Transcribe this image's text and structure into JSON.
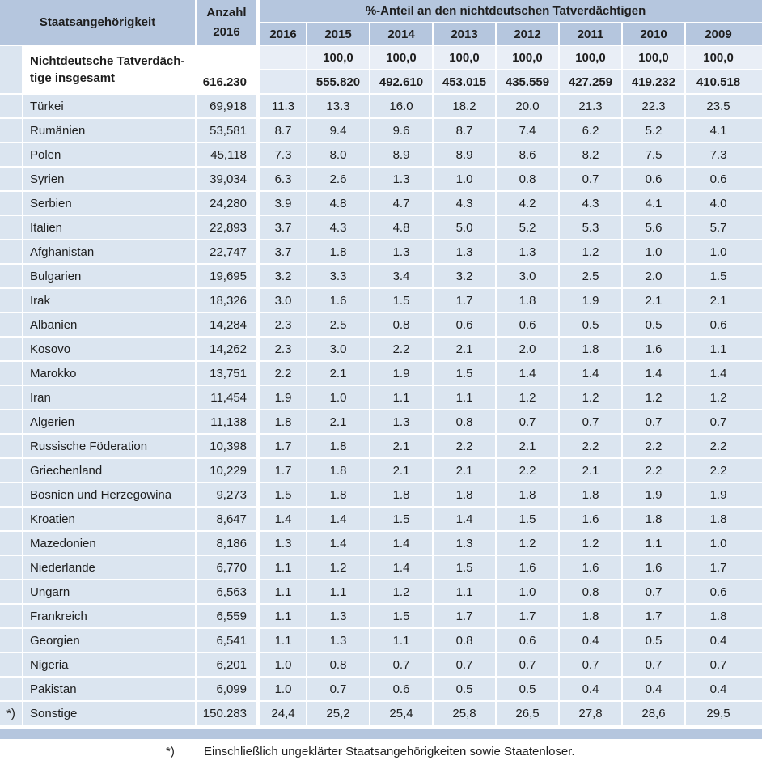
{
  "table": {
    "header": {
      "col_staatsangehoerigkeit": "Staatsangehörigkeit",
      "col_anzahl_line1": "Anzahl",
      "col_anzahl_line2": "2016",
      "col_anteil": "%-Anteil an den nichtdeutschen Tatverdächtigen",
      "years": [
        "2016",
        "2015",
        "2014",
        "2013",
        "2012",
        "2011",
        "2010",
        "2009"
      ]
    },
    "total_row": {
      "label_line1": "Nichtdeutsche Tatverdäch-",
      "label_line2": "tige insgesamt",
      "anzahl": "616.230",
      "shares": [
        "",
        "100,0",
        "100,0",
        "100,0",
        "100,0",
        "100,0",
        "100,0",
        "100,0"
      ],
      "counts": [
        "",
        "555.820",
        "492.610",
        "453.015",
        "435.559",
        "427.259",
        "419.232",
        "410.518"
      ]
    },
    "rows": [
      {
        "marker": "",
        "name": "Türkei",
        "anzahl": "69,918",
        "shares": [
          "11.3",
          "13.3",
          "16.0",
          "18.2",
          "20.0",
          "21.3",
          "22.3",
          "23.5"
        ]
      },
      {
        "marker": "",
        "name": "Rumänien",
        "anzahl": "53,581",
        "shares": [
          "8.7",
          "9.4",
          "9.6",
          "8.7",
          "7.4",
          "6.2",
          "5.2",
          "4.1"
        ]
      },
      {
        "marker": "",
        "name": "Polen",
        "anzahl": "45,118",
        "shares": [
          "7.3",
          "8.0",
          "8.9",
          "8.9",
          "8.6",
          "8.2",
          "7.5",
          "7.3"
        ]
      },
      {
        "marker": "",
        "name": "Syrien",
        "anzahl": "39,034",
        "shares": [
          "6.3",
          "2.6",
          "1.3",
          "1.0",
          "0.8",
          "0.7",
          "0.6",
          "0.6"
        ]
      },
      {
        "marker": "",
        "name": "Serbien",
        "anzahl": "24,280",
        "shares": [
          "3.9",
          "4.8",
          "4.7",
          "4.3",
          "4.2",
          "4.3",
          "4.1",
          "4.0"
        ]
      },
      {
        "marker": "",
        "name": "Italien",
        "anzahl": "22,893",
        "shares": [
          "3.7",
          "4.3",
          "4.8",
          "5.0",
          "5.2",
          "5.3",
          "5.6",
          "5.7"
        ]
      },
      {
        "marker": "",
        "name": "Afghanistan",
        "anzahl": "22,747",
        "shares": [
          "3.7",
          "1.8",
          "1.3",
          "1.3",
          "1.3",
          "1.2",
          "1.0",
          "1.0"
        ]
      },
      {
        "marker": "",
        "name": "Bulgarien",
        "anzahl": "19,695",
        "shares": [
          "3.2",
          "3.3",
          "3.4",
          "3.2",
          "3.0",
          "2.5",
          "2.0",
          "1.5"
        ]
      },
      {
        "marker": "",
        "name": "Irak",
        "anzahl": "18,326",
        "shares": [
          "3.0",
          "1.6",
          "1.5",
          "1.7",
          "1.8",
          "1.9",
          "2.1",
          "2.1"
        ]
      },
      {
        "marker": "",
        "name": "Albanien",
        "anzahl": "14,284",
        "shares": [
          "2.3",
          "2.5",
          "0.8",
          "0.6",
          "0.6",
          "0.5",
          "0.5",
          "0.6"
        ]
      },
      {
        "marker": "",
        "name": "Kosovo",
        "anzahl": "14,262",
        "shares": [
          "2.3",
          "3.0",
          "2.2",
          "2.1",
          "2.0",
          "1.8",
          "1.6",
          "1.1"
        ]
      },
      {
        "marker": "",
        "name": "Marokko",
        "anzahl": "13,751",
        "shares": [
          "2.2",
          "2.1",
          "1.9",
          "1.5",
          "1.4",
          "1.4",
          "1.4",
          "1.4"
        ]
      },
      {
        "marker": "",
        "name": "Iran",
        "anzahl": "11,454",
        "shares": [
          "1.9",
          "1.0",
          "1.1",
          "1.1",
          "1.2",
          "1.2",
          "1.2",
          "1.2"
        ]
      },
      {
        "marker": "",
        "name": "Algerien",
        "anzahl": "11,138",
        "shares": [
          "1.8",
          "2.1",
          "1.3",
          "0.8",
          "0.7",
          "0.7",
          "0.7",
          "0.7"
        ]
      },
      {
        "marker": "",
        "name": "Russische Föderation",
        "anzahl": "10,398",
        "shares": [
          "1.7",
          "1.8",
          "2.1",
          "2.2",
          "2.1",
          "2.2",
          "2.2",
          "2.2"
        ]
      },
      {
        "marker": "",
        "name": "Griechenland",
        "anzahl": "10,229",
        "shares": [
          "1.7",
          "1.8",
          "2.1",
          "2.1",
          "2.2",
          "2.1",
          "2.2",
          "2.2"
        ]
      },
      {
        "marker": "",
        "name": "Bosnien und Herzegowina",
        "anzahl": "9,273",
        "shares": [
          "1.5",
          "1.8",
          "1.8",
          "1.8",
          "1.8",
          "1.8",
          "1.9",
          "1.9"
        ]
      },
      {
        "marker": "",
        "name": "Kroatien",
        "anzahl": "8,647",
        "shares": [
          "1.4",
          "1.4",
          "1.5",
          "1.4",
          "1.5",
          "1.6",
          "1.8",
          "1.8"
        ]
      },
      {
        "marker": "",
        "name": "Mazedonien",
        "anzahl": "8,186",
        "shares": [
          "1.3",
          "1.4",
          "1.4",
          "1.3",
          "1.2",
          "1.2",
          "1.1",
          "1.0"
        ]
      },
      {
        "marker": "",
        "name": "Niederlande",
        "anzahl": "6,770",
        "shares": [
          "1.1",
          "1.2",
          "1.4",
          "1.5",
          "1.6",
          "1.6",
          "1.6",
          "1.7"
        ]
      },
      {
        "marker": "",
        "name": "Ungarn",
        "anzahl": "6,563",
        "shares": [
          "1.1",
          "1.1",
          "1.2",
          "1.1",
          "1.0",
          "0.8",
          "0.7",
          "0.6"
        ]
      },
      {
        "marker": "",
        "name": "Frankreich",
        "anzahl": "6,559",
        "shares": [
          "1.1",
          "1.3",
          "1.5",
          "1.7",
          "1.7",
          "1.8",
          "1.7",
          "1.8"
        ]
      },
      {
        "marker": "",
        "name": "Georgien",
        "anzahl": "6,541",
        "shares": [
          "1.1",
          "1.3",
          "1.1",
          "0.8",
          "0.6",
          "0.4",
          "0.5",
          "0.4"
        ]
      },
      {
        "marker": "",
        "name": "Nigeria",
        "anzahl": "6,201",
        "shares": [
          "1.0",
          "0.8",
          "0.7",
          "0.7",
          "0.7",
          "0.7",
          "0.7",
          "0.7"
        ]
      },
      {
        "marker": "",
        "name": "Pakistan",
        "anzahl": "6,099",
        "shares": [
          "1.0",
          "0.7",
          "0.6",
          "0.5",
          "0.5",
          "0.4",
          "0.4",
          "0.4"
        ]
      },
      {
        "marker": "*)",
        "name": "Sonstige",
        "anzahl": "150.283",
        "shares": [
          "24,4",
          "25,2",
          "25,4",
          "25,8",
          "26,5",
          "27,8",
          "28,6",
          "29,5"
        ]
      }
    ]
  },
  "footnote": {
    "marker": "*)",
    "text": "Einschließlich ungeklärter Staatsangehörigkeiten sowie Staatenloser."
  },
  "colors": {
    "header_blue": "#b5c6de",
    "row_blue": "#dbe5f0",
    "total_share_blue": "#e9eef6",
    "total_count_blue": "#e1e9f3",
    "separator_white": "#ffffff",
    "text": "#1e1e1e"
  }
}
